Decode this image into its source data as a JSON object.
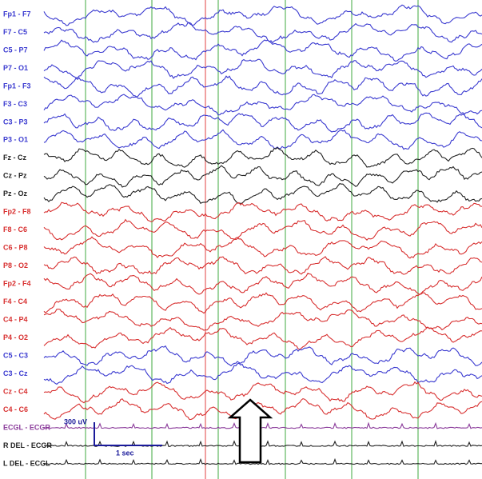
{
  "channels": [
    {
      "label": "Fp1 - F7",
      "color": "#3a3ad0"
    },
    {
      "label": "F7 - C5",
      "color": "#3a3ad0"
    },
    {
      "label": "C5 - P7",
      "color": "#3a3ad0"
    },
    {
      "label": "P7 - O1",
      "color": "#3a3ad0"
    },
    {
      "label": "Fp1 - F3",
      "color": "#3a3ad0"
    },
    {
      "label": "F3 - C3",
      "color": "#3a3ad0"
    },
    {
      "label": "C3 - P3",
      "color": "#3a3ad0"
    },
    {
      "label": "P3 - O1",
      "color": "#3a3ad0"
    },
    {
      "label": "Fz - Cz",
      "color": "#222222"
    },
    {
      "label": "Cz - Pz",
      "color": "#222222"
    },
    {
      "label": "Pz - Oz",
      "color": "#222222"
    },
    {
      "label": "Fp2 - F8",
      "color": "#d83030"
    },
    {
      "label": "F8 - C6",
      "color": "#d83030"
    },
    {
      "label": "C6 - P8",
      "color": "#d83030"
    },
    {
      "label": "P8 - O2",
      "color": "#d83030"
    },
    {
      "label": "Fp2 - F4",
      "color": "#d83030"
    },
    {
      "label": "F4 - C4",
      "color": "#d83030"
    },
    {
      "label": "C4 - P4",
      "color": "#d83030"
    },
    {
      "label": "P4 - O2",
      "color": "#d83030"
    },
    {
      "label": "C5 - C3",
      "color": "#3a3ad0"
    },
    {
      "label": "C3 - Cz",
      "color": "#3a3ad0"
    },
    {
      "label": "Cz - C4",
      "color": "#d83030"
    },
    {
      "label": "C4 - C6",
      "color": "#d83030"
    },
    {
      "label": "ECGL - ECGR",
      "color": "#8a3a9a"
    },
    {
      "label": "R DEL - ECGR",
      "color": "#222222"
    },
    {
      "label": "L DEL - ECGL",
      "color": "#222222"
    }
  ],
  "scale_bar": {
    "amplitude": "300 uV",
    "time": "1 sec"
  }
}
